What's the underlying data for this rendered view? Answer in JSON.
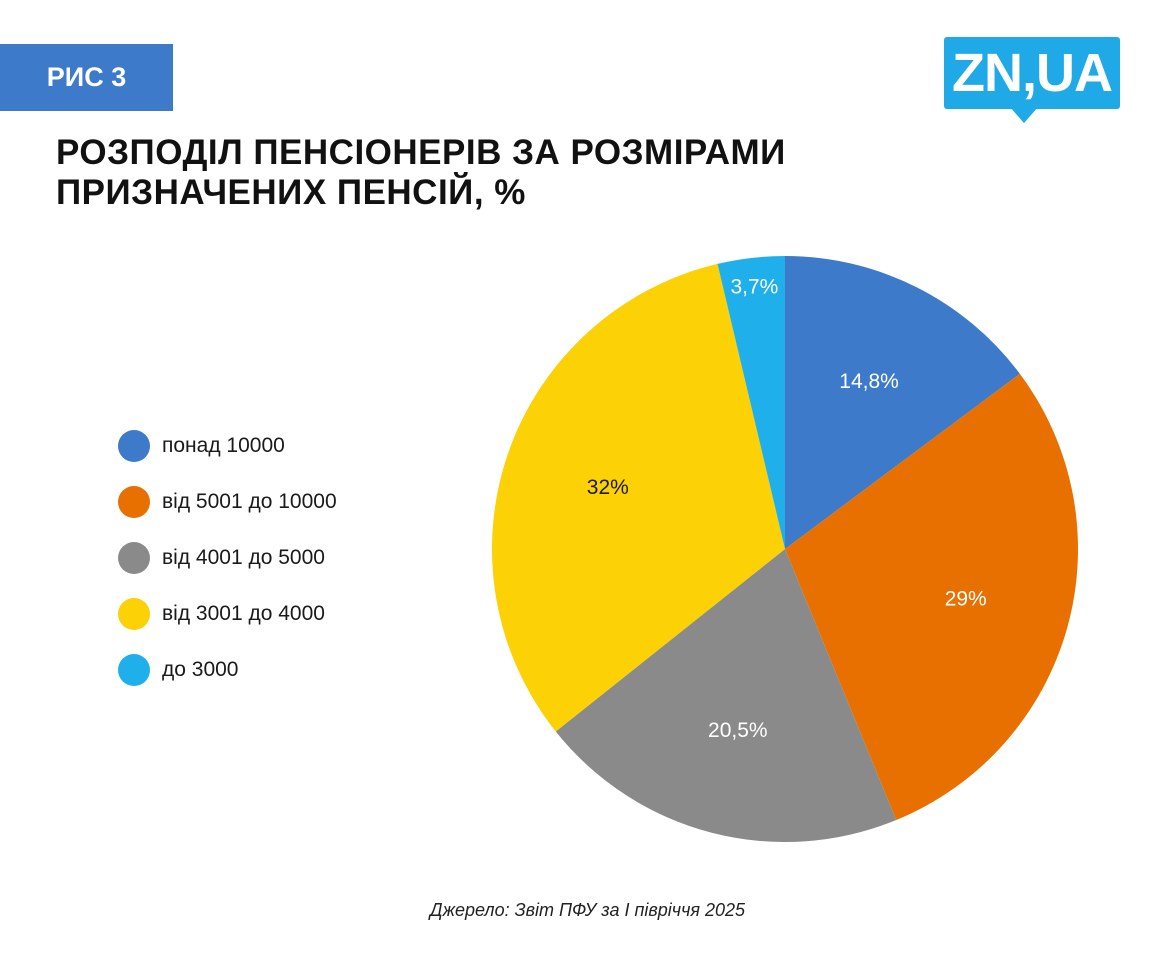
{
  "header": {
    "figure_label": "РИС 3",
    "figure_label_color": "#3d7ac9",
    "title_lines": [
      "РОЗПОДІЛ ПЕНСІОНЕРІВ ЗА РОЗМІРАМИ",
      "ПРИЗНАЧЕНИХ ПЕНСІЙ, %"
    ]
  },
  "logo": {
    "text": "ZN,UA",
    "color": "#1fa9e6"
  },
  "chart_data": {
    "type": "pie",
    "title": "РОЗПОДІЛ ПЕНСІОНЕРІВ ЗА РОЗМІРАМИ ПРИЗНАЧЕНИХ ПЕНСІЙ, %",
    "unit": "%",
    "legend_placement": "left",
    "start": "top, clockwise",
    "slices": [
      {
        "label": "понад 10000",
        "value": 14.8,
        "display": "14,8%",
        "color": "#3d7ac9",
        "text_color": "#ffffff"
      },
      {
        "label": "від 5001 до 10000",
        "value": 29,
        "display": "29%",
        "color": "#e87000",
        "text_color": "#ffffff"
      },
      {
        "label": "від 4001 до 5000",
        "value": 20.5,
        "display": "20,5%",
        "color": "#8a8a8a",
        "text_color": "#ffffff"
      },
      {
        "label": "від 3001 до 4000",
        "value": 32,
        "display": "32%",
        "color": "#fcd105",
        "text_color": "#1a1a1a"
      },
      {
        "label": "до 3000",
        "value": 3.7,
        "display": "3,7%",
        "color": "#1fb0ec",
        "text_color": "#ffffff"
      }
    ]
  },
  "footer": {
    "source": "Джерело: Звіт ПФУ за І півріччя 2025"
  }
}
